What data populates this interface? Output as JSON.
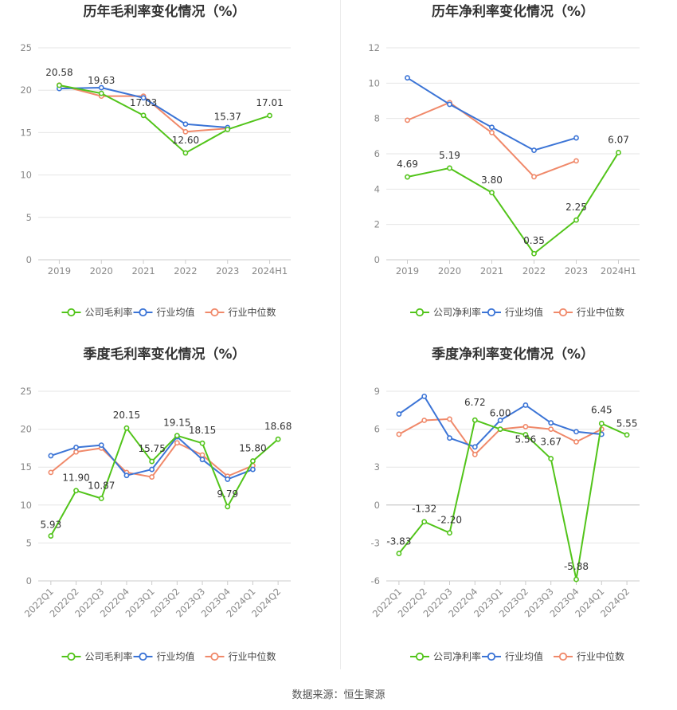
{
  "footer": "数据来源：恒生聚源",
  "colors": {
    "company": "#52c41a",
    "average": "#3b74d6",
    "median": "#f0896a",
    "grid": "#e6e6e6"
  },
  "chart_data": [
    {
      "type": "line",
      "title": "历年毛利率变化情况（%）",
      "categories": [
        "2019",
        "2020",
        "2021",
        "2022",
        "2023",
        "2024H1"
      ],
      "ylim": [
        0,
        25
      ],
      "yticks": [
        0,
        5,
        10,
        15,
        20,
        25
      ],
      "grid": true,
      "legend_position": "bottom",
      "series": [
        {
          "name": "公司毛利率",
          "color": "#52c41a",
          "labels": true,
          "values": [
            20.58,
            19.63,
            17.03,
            12.6,
            15.37,
            17.01
          ]
        },
        {
          "name": "行业均值",
          "color": "#3b74d6",
          "labels": false,
          "values": [
            20.2,
            20.3,
            19.1,
            16.0,
            15.6,
            null
          ]
        },
        {
          "name": "行业中位数",
          "color": "#f0896a",
          "labels": false,
          "values": [
            20.6,
            19.3,
            19.3,
            15.1,
            15.5,
            null
          ]
        }
      ]
    },
    {
      "type": "line",
      "title": "历年净利率变化情况（%）",
      "categories": [
        "2019",
        "2020",
        "2021",
        "2022",
        "2023",
        "2024H1"
      ],
      "ylim": [
        0,
        12
      ],
      "yticks": [
        0,
        2,
        4,
        6,
        8,
        10,
        12
      ],
      "grid": true,
      "legend_position": "bottom",
      "series": [
        {
          "name": "公司净利率",
          "color": "#52c41a",
          "labels": true,
          "values": [
            4.69,
            5.19,
            3.8,
            0.35,
            2.25,
            6.07
          ]
        },
        {
          "name": "行业均值",
          "color": "#3b74d6",
          "labels": false,
          "values": [
            10.3,
            8.8,
            7.5,
            6.2,
            6.9,
            null
          ]
        },
        {
          "name": "行业中位数",
          "color": "#f0896a",
          "labels": false,
          "values": [
            7.9,
            8.9,
            7.2,
            4.7,
            5.6,
            null
          ]
        }
      ]
    },
    {
      "type": "line",
      "title": "季度毛利率变化情况（%）",
      "categories": [
        "2022Q1",
        "2022Q2",
        "2022Q3",
        "2022Q4",
        "2023Q1",
        "2023Q2",
        "2023Q3",
        "2023Q4",
        "2024Q1",
        "2024Q2"
      ],
      "ylim": [
        0,
        25
      ],
      "yticks": [
        0,
        5,
        10,
        15,
        20,
        25
      ],
      "grid": true,
      "legend_position": "bottom",
      "series": [
        {
          "name": "公司毛利率",
          "color": "#52c41a",
          "labels": true,
          "values": [
            5.93,
            11.9,
            10.87,
            20.15,
            15.75,
            19.15,
            18.15,
            9.79,
            15.8,
            18.68
          ]
        },
        {
          "name": "行业均值",
          "color": "#3b74d6",
          "labels": false,
          "values": [
            16.5,
            17.6,
            17.9,
            13.9,
            14.7,
            19.0,
            16.0,
            13.4,
            14.7,
            null
          ]
        },
        {
          "name": "行业中位数",
          "color": "#f0896a",
          "labels": false,
          "values": [
            14.3,
            17.0,
            17.5,
            14.3,
            13.7,
            18.2,
            16.6,
            13.8,
            15.2,
            null
          ]
        }
      ]
    },
    {
      "type": "line",
      "title": "季度净利率变化情况（%）",
      "categories": [
        "2022Q1",
        "2022Q2",
        "2022Q3",
        "2022Q4",
        "2023Q1",
        "2023Q2",
        "2023Q3",
        "2023Q4",
        "2024Q1",
        "2024Q2"
      ],
      "ylim": [
        -6,
        9
      ],
      "yticks": [
        -6,
        -3,
        0,
        3,
        6,
        9
      ],
      "grid": true,
      "legend_position": "bottom",
      "series": [
        {
          "name": "公司净利率",
          "color": "#52c41a",
          "labels": true,
          "values": [
            -3.83,
            -1.32,
            -2.2,
            6.72,
            6.0,
            5.56,
            3.67,
            -5.88,
            6.45,
            5.55
          ]
        },
        {
          "name": "行业均值",
          "color": "#3b74d6",
          "labels": false,
          "values": [
            7.2,
            8.6,
            5.3,
            4.6,
            6.7,
            7.9,
            6.5,
            5.8,
            5.6,
            null
          ]
        },
        {
          "name": "行业中位数",
          "color": "#f0896a",
          "labels": false,
          "values": [
            5.6,
            6.7,
            6.8,
            4.0,
            6.0,
            6.2,
            6.0,
            5.0,
            6.0,
            null
          ]
        }
      ]
    }
  ]
}
